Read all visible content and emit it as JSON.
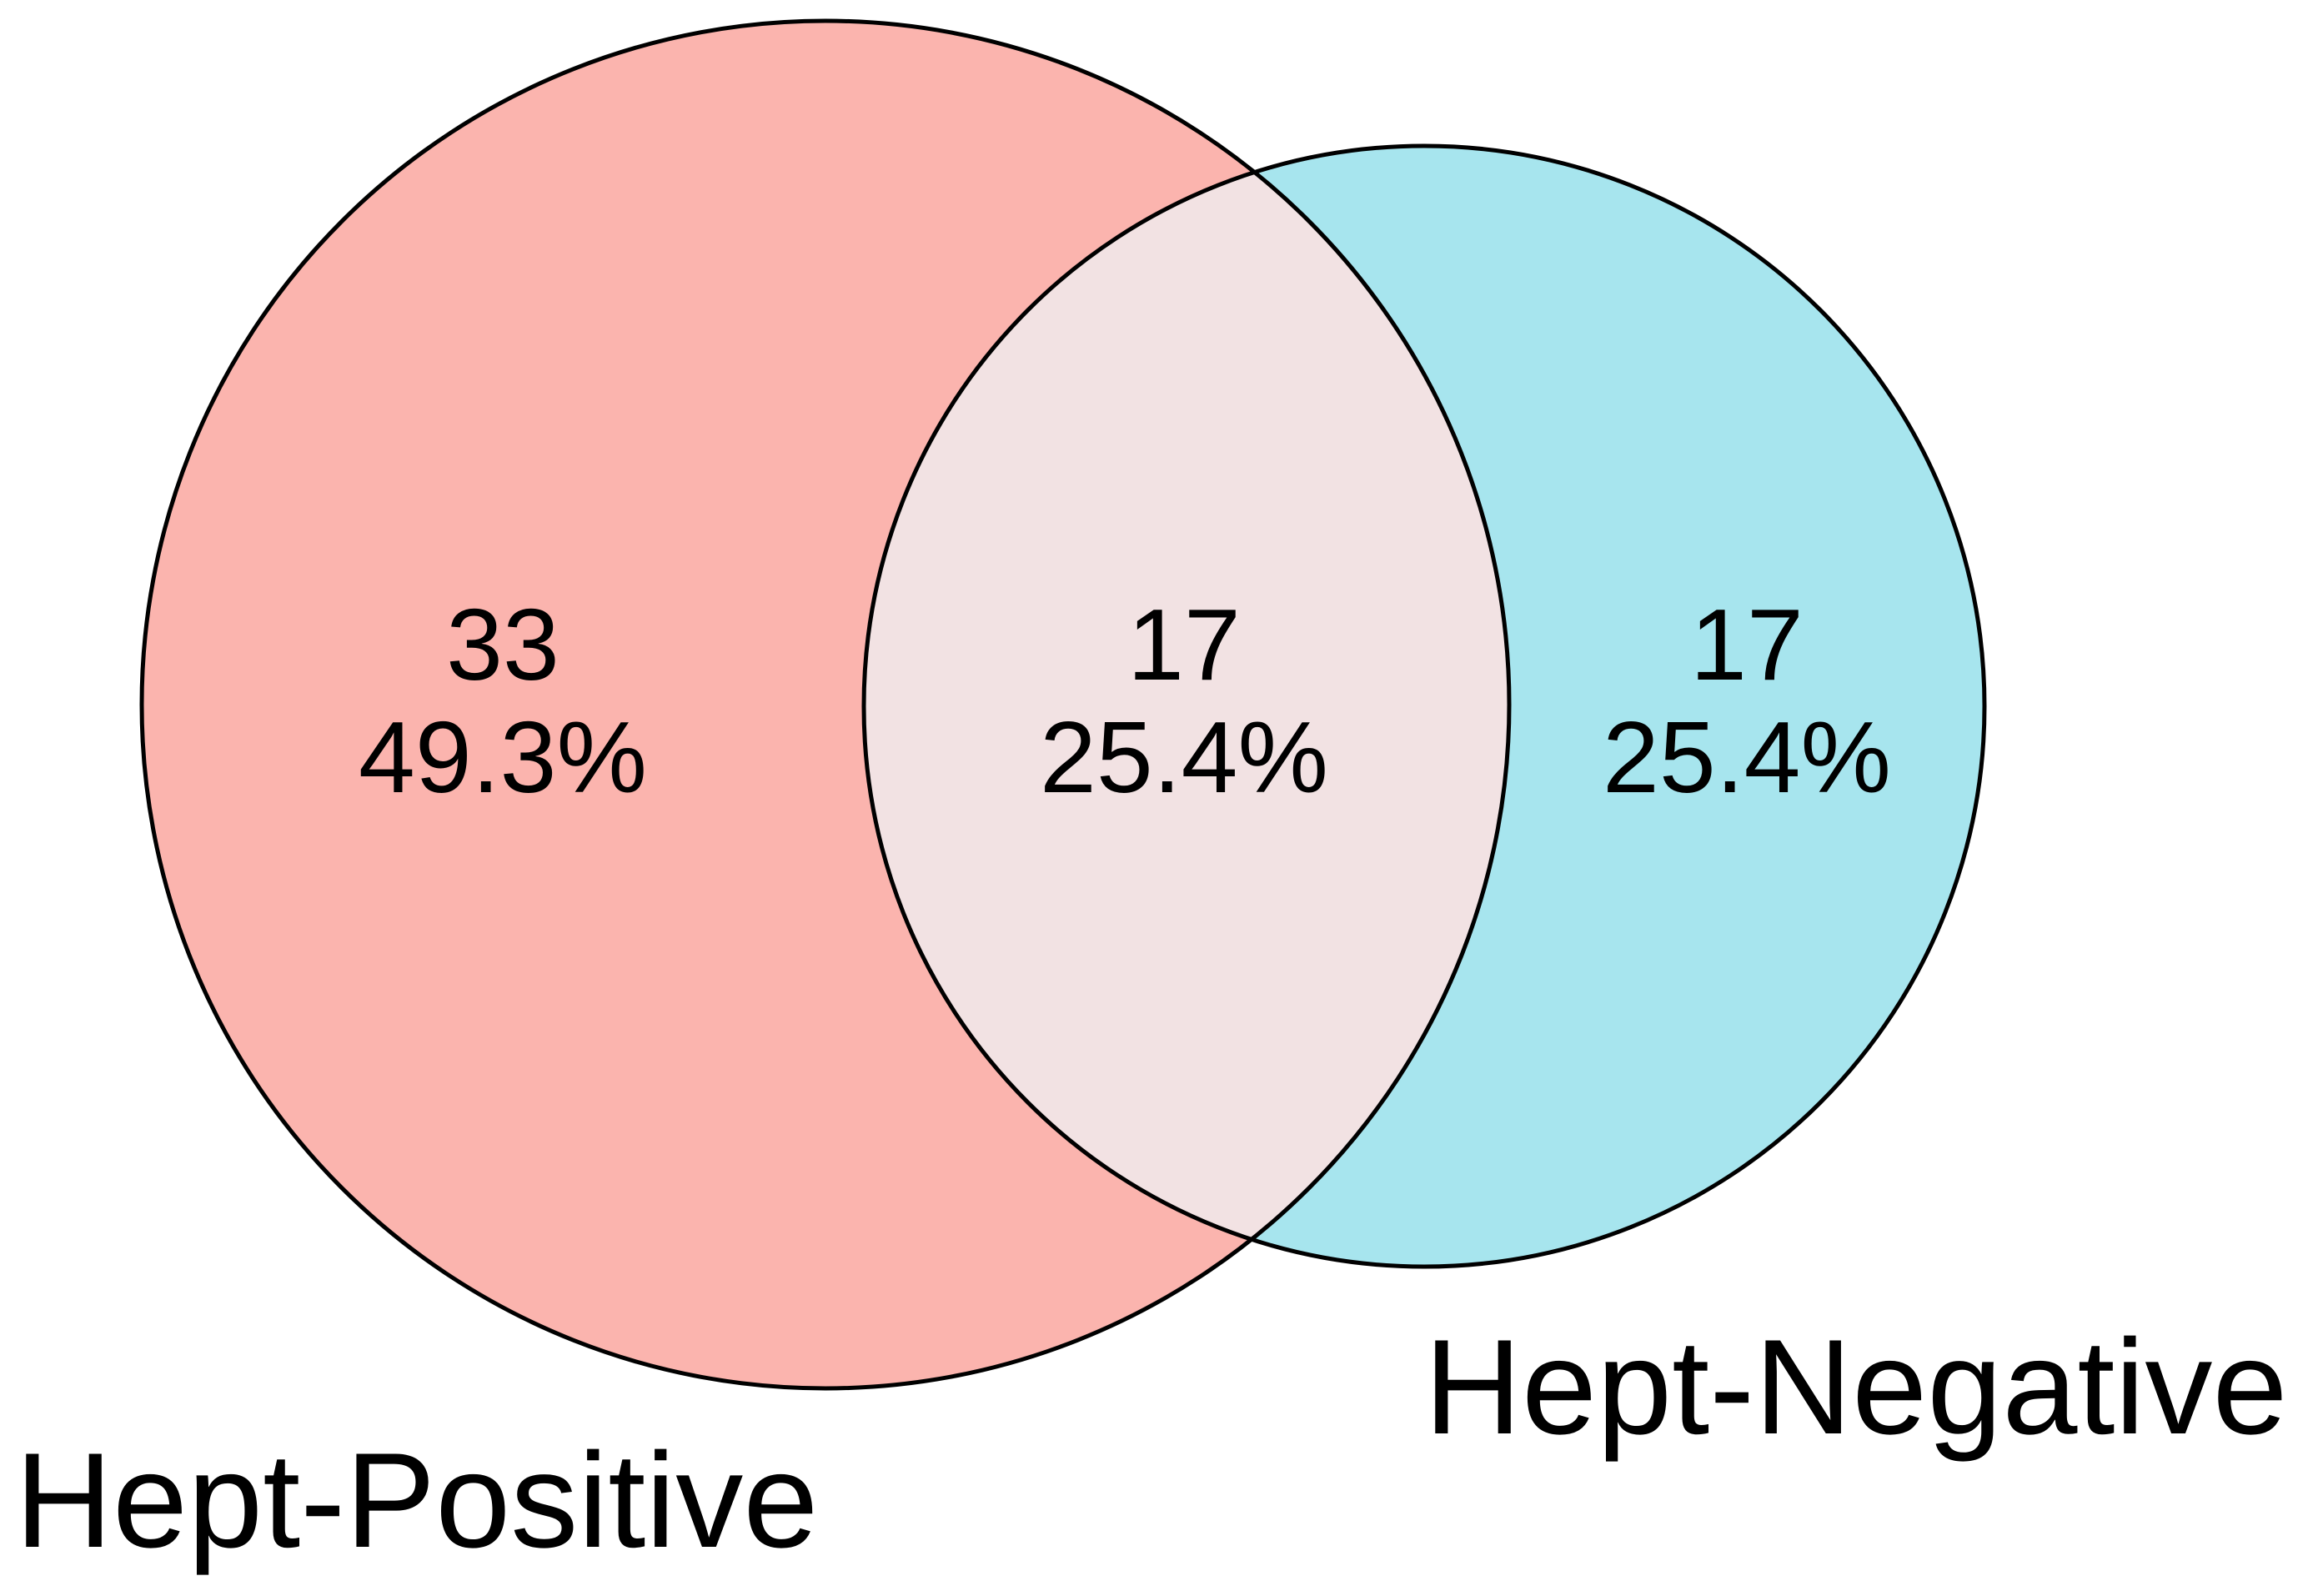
{
  "chart_data": {
    "type": "venn",
    "sets": [
      {
        "name": "Hept-Positive",
        "color": "#FBB4AE"
      },
      {
        "name": "Hept-Negative",
        "color": "#A7E5EE"
      }
    ],
    "intersection_color": "#F2E2E3",
    "regions": [
      {
        "id": "hept_positive_only",
        "sets": [
          "Hept-Positive"
        ],
        "count": "33",
        "percent": "49.3%"
      },
      {
        "id": "intersection",
        "sets": [
          "Hept-Positive",
          "Hept-Negative"
        ],
        "count": "17",
        "percent": "25.4%"
      },
      {
        "id": "hept_negative_only",
        "sets": [
          "Hept-Negative"
        ],
        "count": "17",
        "percent": "25.4%"
      }
    ]
  }
}
